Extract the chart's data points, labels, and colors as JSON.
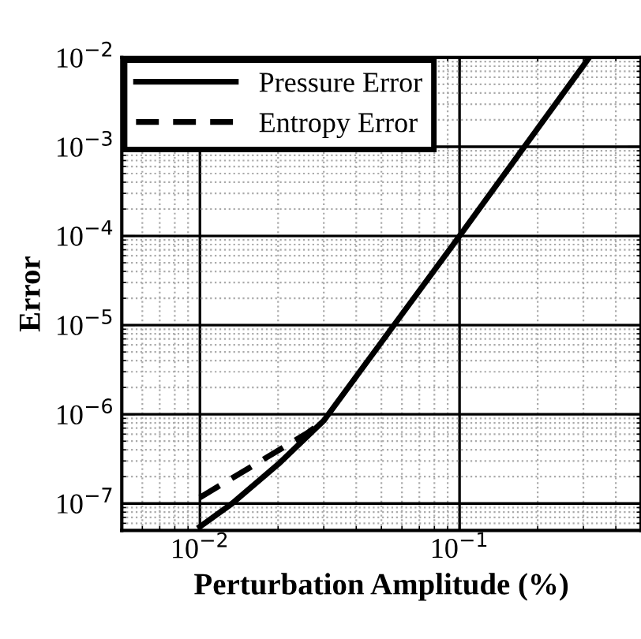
{
  "chart_data": {
    "type": "line",
    "xlabel": "Perturbation Amplitude (%)",
    "ylabel": "Error",
    "log": "xy",
    "grid": true,
    "legend": "top left",
    "marker": "none",
    "xlim": [
      0.005,
      0.5
    ],
    "ylim": [
      5e-08,
      0.01
    ],
    "xticks": [
      {
        "value": 0.01,
        "label": "10$^{−2}$"
      },
      {
        "value": 0.1,
        "label": "10$^{−1}$"
      }
    ],
    "yticks": [
      {
        "value": 1e-07,
        "label": "10$^{−7}$"
      },
      {
        "value": 1e-06,
        "label": "10$^{−6}$"
      },
      {
        "value": 1e-05,
        "label": "10$^{−5}$"
      },
      {
        "value": 0.0001,
        "label": "10$^{−4}$"
      },
      {
        "value": 0.001,
        "label": "10$^{−3}$"
      },
      {
        "value": 0.01,
        "label": "10$^{−2}$"
      }
    ],
    "series": [
      {
        "name": "Pressure Error",
        "color": "#000000",
        "line_style": "solid",
        "x": [
          0.01,
          0.0133,
          0.02,
          0.03,
          0.1,
          0.316
        ],
        "values": [
          5.5e-08,
          1e-07,
          2.75e-07,
          8.5e-07,
          0.0001,
          0.01
        ]
      },
      {
        "name": "Entropy Error",
        "color": "#000000",
        "line_style": "dashed",
        "x": [
          0.01,
          0.026,
          0.03
        ],
        "values": [
          1.17e-07,
          6.2e-07,
          8.5e-07
        ]
      }
    ]
  }
}
